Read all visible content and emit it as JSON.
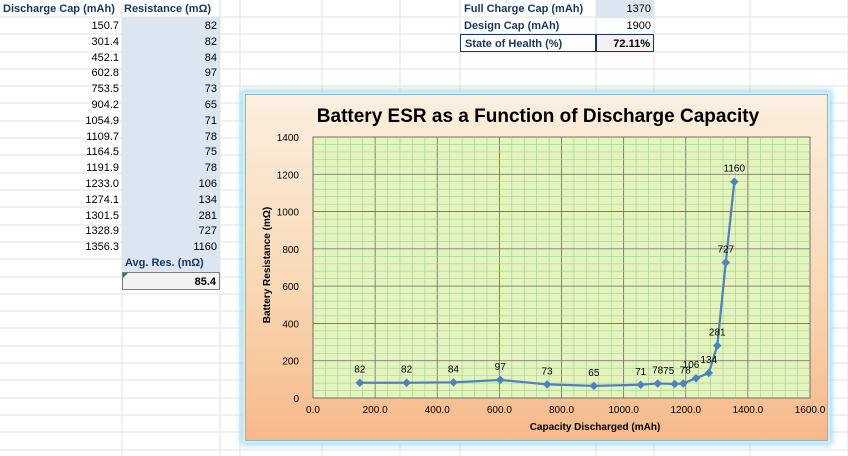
{
  "left_table": {
    "headers": {
      "cap": "Discharge Cap (mAh)",
      "res": "Resistance (mΩ)"
    },
    "rows": [
      [
        "150.7",
        "82"
      ],
      [
        "301.4",
        "82"
      ],
      [
        "452.1",
        "84"
      ],
      [
        "602.8",
        "97"
      ],
      [
        "753.5",
        "73"
      ],
      [
        "904.2",
        "65"
      ],
      [
        "1054.9",
        "71"
      ],
      [
        "1109.7",
        "78"
      ],
      [
        "1164.5",
        "75"
      ],
      [
        "1191.9",
        "78"
      ],
      [
        "1233.0",
        "106"
      ],
      [
        "1274.1",
        "134"
      ],
      [
        "1301.5",
        "281"
      ],
      [
        "1328.9",
        "727"
      ],
      [
        "1356.3",
        "1160"
      ]
    ],
    "avg_label": "Avg. Res. (mΩ)",
    "avg_value": "85.4"
  },
  "summary": {
    "full_charge_label": "Full Charge Cap (mAh)",
    "full_charge_value": "1370",
    "design_cap_label": "Design Cap (mAh)",
    "design_cap_value": "1900",
    "soh_label": "State of Health (%)",
    "soh_value": "72.11%"
  },
  "colors": {
    "header_text": "#17375e",
    "cell_fill": "#dce6f1",
    "plot_fill": "#e4f4bc",
    "line": "#4f81bd"
  },
  "chart_data": {
    "type": "scatter",
    "title": "Battery ESR as a Function of Discharge Capacity",
    "xlabel": "Capacity Discharged (mAh)",
    "ylabel": "Battery Resistance (mΩ)",
    "xlim": [
      0,
      1600
    ],
    "ylim": [
      0,
      1400
    ],
    "x_ticks": [
      "0.0",
      "200.0",
      "400.0",
      "600.0",
      "800.0",
      "1000.0",
      "1200.0",
      "1400.0",
      "1600.0"
    ],
    "y_ticks": [
      "0",
      "200",
      "400",
      "600",
      "800",
      "1000",
      "1200",
      "1400"
    ],
    "grid": true,
    "series": [
      {
        "x": [
          150.7,
          301.4,
          452.1,
          602.8,
          753.5,
          904.2,
          1054.9,
          1109.7,
          1164.5,
          1191.9,
          1233.0,
          1274.1,
          1301.5,
          1328.9,
          1356.3
        ],
        "y": [
          82,
          82,
          84,
          97,
          73,
          65,
          71,
          78,
          75,
          78,
          106,
          134,
          281,
          727,
          1160
        ],
        "labels": [
          "82",
          "82",
          "84",
          "97",
          "73",
          "65",
          "71",
          "78",
          "75",
          "78",
          "106",
          "134",
          "281",
          "727",
          "1160"
        ]
      }
    ]
  }
}
